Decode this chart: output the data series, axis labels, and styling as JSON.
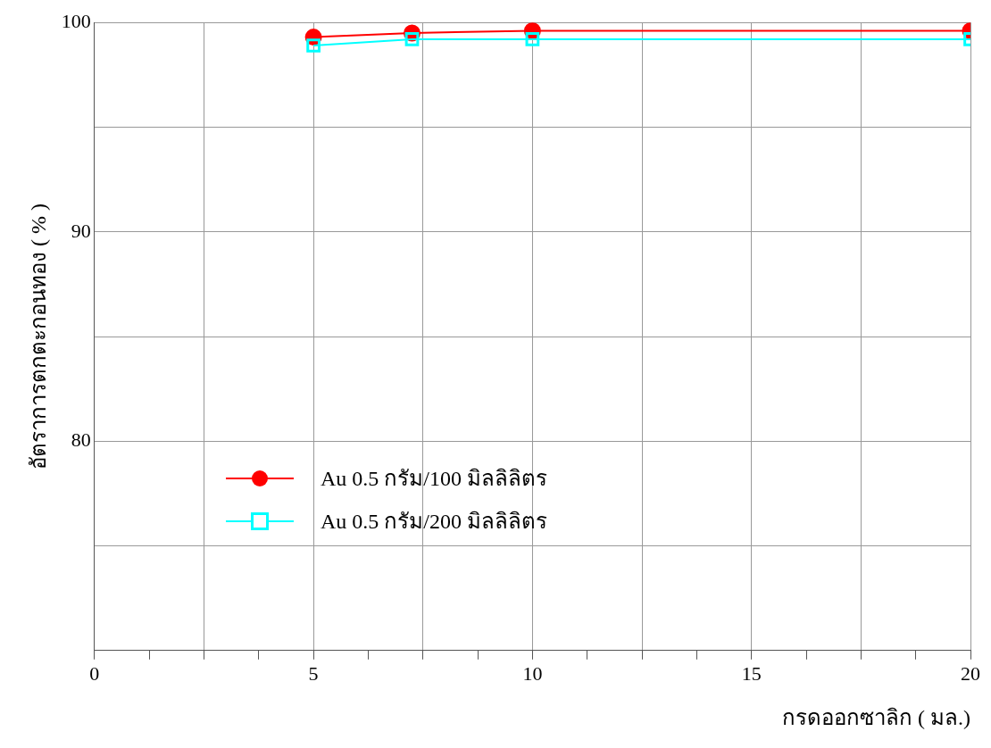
{
  "chart_data": {
    "type": "line",
    "xlabel": "กรดออกซาลิก ( มล.)",
    "ylabel": "อัตราการตกตะกอนทอง ( % )",
    "xlim": [
      0,
      20
    ],
    "ylim": [
      70,
      100
    ],
    "xticks": [
      0,
      {
        "value": 1.25,
        "label": null
      },
      {
        "value": 2.5,
        "label": null
      },
      {
        "value": 3.75,
        "label": null
      },
      5,
      {
        "value": 6.25,
        "label": null
      },
      {
        "value": 7.5,
        "label": null
      },
      {
        "value": 8.75,
        "label": null
      },
      10,
      {
        "value": 11.25,
        "label": null
      },
      {
        "value": 12.5,
        "label": null
      },
      {
        "value": 13.75,
        "label": null
      },
      15,
      {
        "value": 16.25,
        "label": null
      },
      {
        "value": 17.5,
        "label": null
      },
      {
        "value": 18.75,
        "label": null
      },
      20
    ],
    "yticks": [
      {
        "value": 70,
        "label": null
      },
      {
        "value": 75,
        "label": null
      },
      80,
      {
        "value": 85,
        "label": null
      },
      90,
      {
        "value": 95,
        "label": null
      },
      100
    ],
    "x": [
      5,
      7.25,
      10,
      20
    ],
    "series": [
      {
        "name": "Au 0.5 กรัม/100 มิลลิลิตร",
        "color": "#ff0000",
        "marker": "circle",
        "values": [
          99.3,
          99.5,
          99.6,
          99.6
        ]
      },
      {
        "name": "Au 0.5 กรัม/200 มิลลิลิตร",
        "color": "#00ffff",
        "marker": "square",
        "values": [
          98.9,
          99.2,
          99.2,
          99.2
        ]
      }
    ],
    "grid": true,
    "legend": "bottom left",
    "line_style": "solid"
  }
}
